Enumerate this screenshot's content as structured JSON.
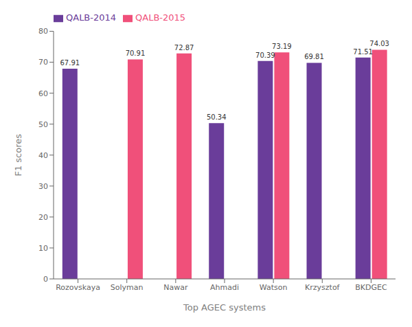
{
  "chart_data": {
    "type": "bar",
    "categories": [
      "Rozovskaya",
      "Solyman",
      "Nawar",
      "Ahmadi",
      "Watson",
      "Krzysztof",
      "BKDGEC"
    ],
    "series": [
      {
        "name": "QALB-2014",
        "color": "#6a3d9a",
        "values": [
          67.91,
          0,
          0,
          50.34,
          70.39,
          69.81,
          71.51
        ]
      },
      {
        "name": "QALB-2015",
        "color": "#f0507a",
        "values": [
          0,
          70.91,
          72.87,
          0,
          73.19,
          0,
          74.03
        ]
      }
    ],
    "xlabel": "Top AGEC systems",
    "ylabel": "F1 scores",
    "ylim": [
      0,
      80
    ],
    "yticks": [
      0,
      10,
      20,
      30,
      40,
      50,
      60,
      70,
      80
    ],
    "grid": false,
    "legend": "upper left",
    "data_labels": true
  }
}
